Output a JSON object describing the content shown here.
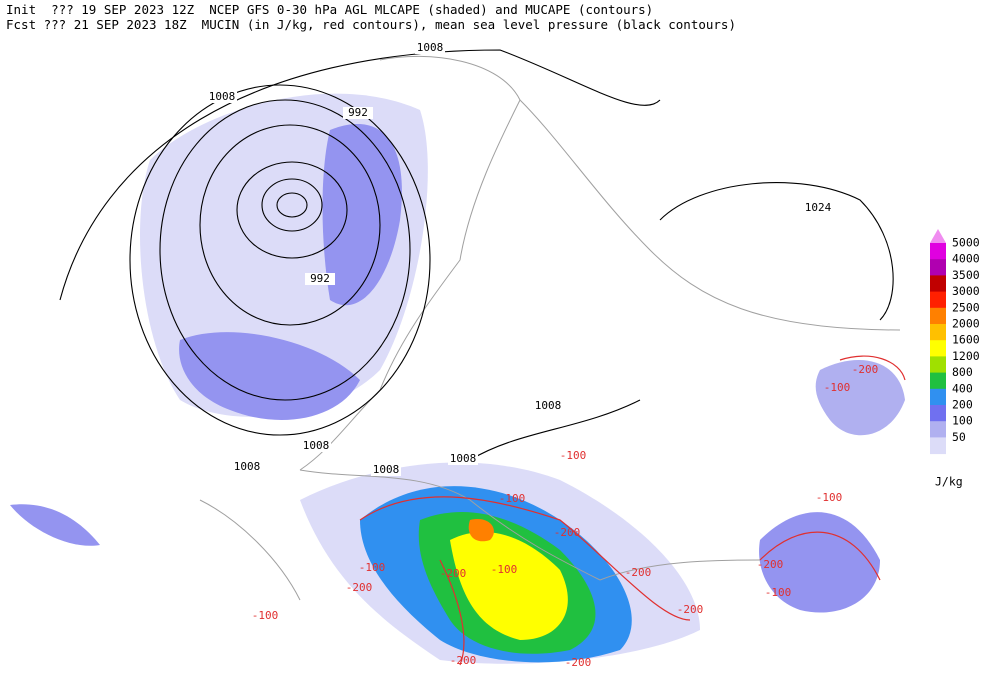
{
  "header": {
    "line1": "Init  ??? 19 SEP 2023 12Z  NCEP GFS 0-30 hPa AGL MLCAPE (shaded) and MUCAPE (contours)",
    "line2": "Fcst ??? 21 SEP 2023 18Z  MUCIN (in J/kg, red contours), mean sea level pressure (black contours)"
  },
  "pressure_labels": [
    "1008",
    "1008",
    "992",
    "992",
    "1024",
    "1008",
    "1008",
    "1008",
    "1008",
    "1008"
  ],
  "cin_labels": [
    "-200",
    "-100",
    "-100",
    "-100",
    "-200",
    "-200",
    "-100",
    "-200",
    "-100",
    "-100",
    "-200",
    "-200",
    "-200",
    "-200",
    "-100",
    "-200",
    "-100"
  ],
  "legend": {
    "unit": "J/kg",
    "entries": [
      {
        "label": "5000",
        "color": "#e000e0"
      },
      {
        "label": "4000",
        "color": "#b000b0"
      },
      {
        "label": "3500",
        "color": "#c00000"
      },
      {
        "label": "3000",
        "color": "#ff2000"
      },
      {
        "label": "2500",
        "color": "#ff8000"
      },
      {
        "label": "2000",
        "color": "#ffc000"
      },
      {
        "label": "1600",
        "color": "#ffff00"
      },
      {
        "label": "1200",
        "color": "#a0e000"
      },
      {
        "label": "800",
        "color": "#20c040"
      },
      {
        "label": "400",
        "color": "#3090f0"
      },
      {
        "label": "200",
        "color": "#7070f0"
      },
      {
        "label": "100",
        "color": "#b0b0f0"
      },
      {
        "label": "50",
        "color": "#dcdcf8"
      }
    ],
    "top_color": "#f08cf0"
  }
}
